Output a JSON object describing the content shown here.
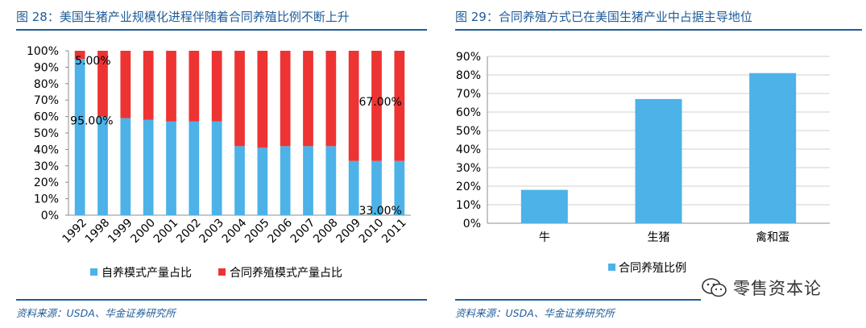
{
  "colors": {
    "title": "#1f5c99",
    "blue": "#4cb2e8",
    "red": "#ee3333",
    "axis": "#8c8c8c"
  },
  "left": {
    "title": "图 28：美国生猪产业规模化进程伴随着合同养殖比例不断上升",
    "source": "资料来源：USDA、华金证券研究所"
  },
  "right": {
    "title": "图 29：合同养殖方式已在美国生猪产业中占据主导地位",
    "source": "资料来源：USDA、华金证券研究所"
  },
  "watermark": {
    "text": "零售资本论",
    "icon": "wechat-icon"
  },
  "chart_data": [
    {
      "type": "bar",
      "stacked": true,
      "percent": true,
      "categories": [
        "1992",
        "1998",
        "1999",
        "2000",
        "2001",
        "2002",
        "2003",
        "2004",
        "2005",
        "2006",
        "2007",
        "2008",
        "2009",
        "2010",
        "2011"
      ],
      "series": [
        {
          "name": "自养模式产量占比",
          "color": "#4cb2e8",
          "values": [
            95,
            60,
            59,
            58,
            57,
            57,
            57,
            42,
            41,
            42,
            42,
            42,
            33,
            33,
            33
          ]
        },
        {
          "name": "合同养殖模式产量占比",
          "color": "#ee3333",
          "values": [
            5,
            40,
            41,
            42,
            43,
            43,
            43,
            58,
            59,
            58,
            58,
            58,
            67,
            67,
            67
          ]
        }
      ],
      "annotations": [
        "5.00%",
        "95.00%",
        "67.00%",
        "33.00%"
      ],
      "yticks": [
        "0%",
        "10%",
        "20%",
        "30%",
        "40%",
        "50%",
        "60%",
        "70%",
        "80%",
        "90%",
        "100%"
      ],
      "ylim": [
        0,
        100
      ],
      "legend": "bottom"
    },
    {
      "type": "bar",
      "categories": [
        "牛",
        "生猪",
        "禽和蛋"
      ],
      "series": [
        {
          "name": "合同养殖比例",
          "color": "#4cb2e8",
          "values": [
            18,
            67,
            81
          ]
        }
      ],
      "yticks": [
        "0%",
        "10%",
        "20%",
        "30%",
        "40%",
        "50%",
        "60%",
        "70%",
        "80%",
        "90%"
      ],
      "ylim": [
        0,
        90
      ],
      "legend": "bottom"
    }
  ]
}
